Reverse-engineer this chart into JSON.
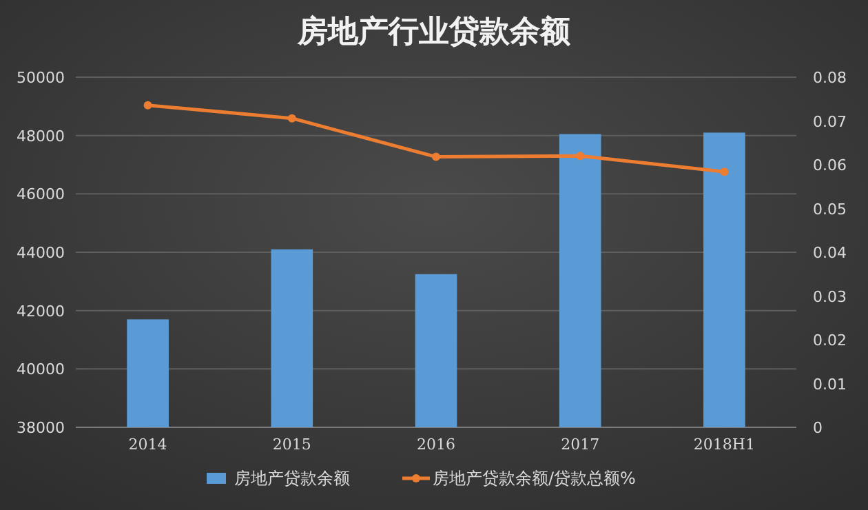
{
  "chart_data": {
    "type": "bar",
    "title": "房地产行业贷款余额",
    "categories": [
      "2014",
      "2015",
      "2016",
      "2017",
      "2018H1"
    ],
    "series": [
      {
        "name": "房地产贷款余额",
        "color": "#5b9bd5",
        "values": [
          41700,
          44100,
          43250,
          48050,
          48100
        ]
      },
      {
        "name": "房地产贷款余额/贷款总额%",
        "type": "line",
        "axis": "y2",
        "color": "#ed7d31",
        "values": [
          0.0736,
          0.0706,
          0.0618,
          0.062,
          0.0584
        ]
      }
    ],
    "ylim": [
      38000,
      50000
    ],
    "yticks": [
      38000,
      40000,
      42000,
      44000,
      46000,
      48000,
      50000
    ],
    "y2lim": [
      0,
      0.08
    ],
    "y2ticks": [
      0,
      0.01,
      0.02,
      0.03,
      0.04,
      0.05,
      0.06,
      0.07,
      0.08
    ],
    "grid": "y",
    "legend": "bottom",
    "marker": "circle"
  }
}
